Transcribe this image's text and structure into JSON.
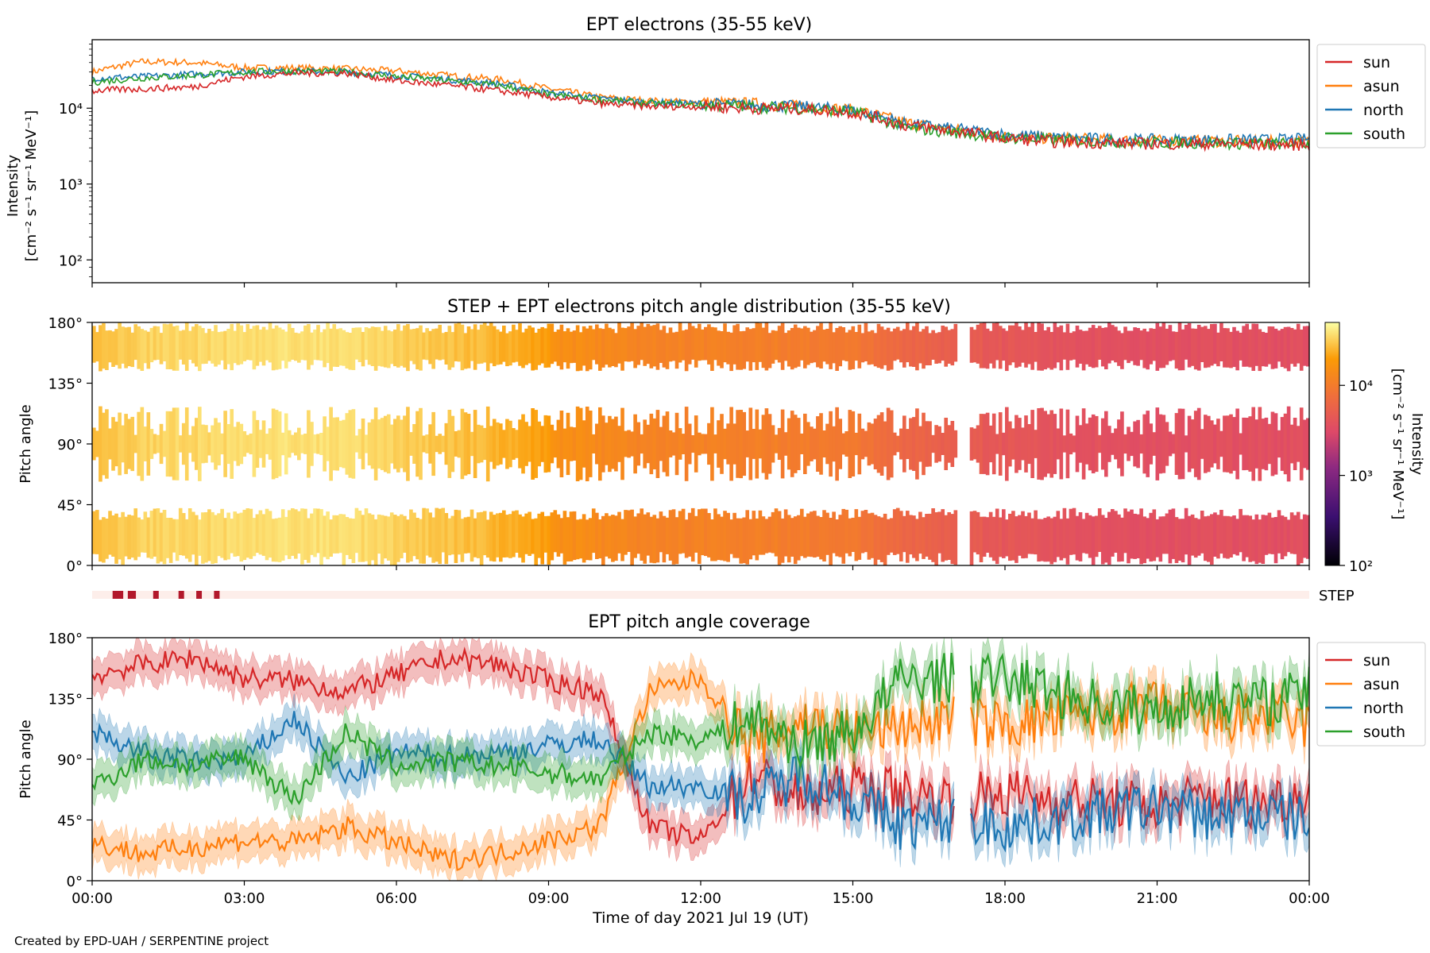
{
  "figure": {
    "credit": "Created by EPD-UAH / SERPENTINE project",
    "xlabel": "Time of day 2021 Jul 19 (UT)",
    "x_ticks": [
      "00:00",
      "03:00",
      "06:00",
      "09:00",
      "12:00",
      "15:00",
      "18:00",
      "21:00",
      "00:00"
    ]
  },
  "colors": {
    "sun": "#d62728",
    "asun": "#ff7f0e",
    "north": "#1f77b4",
    "south": "#2ca02c",
    "step": "#b2182b"
  },
  "chart_data": [
    {
      "type": "line",
      "title": "EPT electrons (35-55 keV)",
      "ylabel_line1": "Intensity",
      "ylabel_line2": "[cm⁻² s⁻¹ sr⁻¹ MeV⁻¹]",
      "yscale": "log",
      "ylim": [
        50,
        80000
      ],
      "y_ticks": [
        "10²",
        "10³",
        "10⁴"
      ],
      "y_tick_values": [
        100,
        1000,
        10000
      ],
      "x": [
        0,
        1,
        2,
        3,
        4,
        5,
        6,
        7,
        8,
        9,
        10,
        11,
        12,
        13,
        14,
        15,
        16,
        17,
        18,
        19,
        20,
        21,
        22,
        23,
        24
      ],
      "legend_position": "outside-right",
      "series": [
        {
          "name": "sun",
          "values": [
            17000,
            18000,
            19000,
            26000,
            29000,
            29000,
            23000,
            20000,
            17000,
            14000,
            11500,
            10500,
            10500,
            10000,
            9800,
            8800,
            6000,
            5000,
            4000,
            3600,
            3500,
            3400,
            3400,
            3300,
            3300
          ]
        },
        {
          "name": "asun",
          "values": [
            30000,
            41000,
            40000,
            34000,
            34000,
            33000,
            31000,
            27000,
            24000,
            18000,
            14000,
            12500,
            12000,
            11500,
            10500,
            9500,
            6500,
            5200,
            4300,
            4000,
            3800,
            3700,
            3700,
            3600,
            3600
          ]
        },
        {
          "name": "north",
          "values": [
            25000,
            26000,
            28000,
            30000,
            31000,
            30000,
            27000,
            24000,
            21000,
            16000,
            13500,
            12000,
            11500,
            11000,
            10500,
            9400,
            6300,
            5300,
            4500,
            4100,
            3900,
            3800,
            3800,
            3800,
            3900
          ]
        },
        {
          "name": "south",
          "values": [
            22000,
            25000,
            27000,
            30000,
            31000,
            30000,
            26000,
            23000,
            20000,
            15000,
            13000,
            11500,
            11000,
            10500,
            10000,
            9000,
            5500,
            4800,
            4100,
            3800,
            3600,
            3500,
            3500,
            3400,
            3400
          ]
        }
      ]
    },
    {
      "type": "heatmap",
      "title": "STEP + EPT electrons pitch angle distribution (35-55 keV)",
      "ylabel": "Pitch angle",
      "ylim": [
        0,
        180
      ],
      "y_ticks": [
        "0°",
        "45°",
        "90°",
        "135°",
        "180°"
      ],
      "colorbar": {
        "label_line1": "Intensity",
        "label_line2": "[cm⁻² s⁻¹ sr⁻¹ MeV⁻¹]",
        "scale": "log",
        "range": [
          100,
          50000
        ],
        "ticks": [
          "10²",
          "10³",
          "10⁴"
        ],
        "tick_values": [
          100,
          1000,
          10000
        ]
      },
      "data_gap_hours": [
        [
          17.0,
          17.3
        ]
      ]
    },
    {
      "type": "bar",
      "label": "STEP",
      "step_marks_hours": [
        0.45,
        0.55,
        0.75,
        0.8,
        1.25,
        1.75,
        2.1,
        2.45
      ]
    },
    {
      "type": "line",
      "title": "EPT pitch angle coverage",
      "ylabel": "Pitch angle",
      "ylim": [
        0,
        180
      ],
      "y_ticks": [
        "0°",
        "45°",
        "90°",
        "135°",
        "180°"
      ],
      "x": [
        0,
        1,
        2,
        3,
        4,
        5,
        6,
        7,
        8,
        9,
        10,
        11,
        12,
        13,
        14,
        15,
        16,
        17,
        18,
        19,
        20,
        21,
        22,
        23,
        24
      ],
      "legend_position": "outside-right",
      "series": [
        {
          "name": "sun",
          "values": [
            152,
            160,
            165,
            150,
            148,
            140,
            152,
            165,
            160,
            148,
            140,
            40,
            30,
            80,
            60,
            70,
            65,
            60,
            65,
            60,
            58,
            55,
            62,
            58,
            65
          ]
        },
        {
          "name": "asun",
          "values": [
            28,
            20,
            25,
            30,
            28,
            40,
            28,
            15,
            20,
            30,
            40,
            140,
            150,
            100,
            120,
            110,
            115,
            120,
            115,
            120,
            125,
            130,
            118,
            122,
            115
          ]
        },
        {
          "name": "north",
          "values": [
            110,
            95,
            88,
            90,
            120,
            75,
            95,
            92,
            95,
            100,
            105,
            70,
            70,
            60,
            80,
            60,
            40,
            45,
            40,
            45,
            50,
            55,
            48,
            50,
            45
          ]
        },
        {
          "name": "south",
          "values": [
            70,
            90,
            85,
            92,
            60,
            110,
            85,
            88,
            85,
            80,
            75,
            110,
            105,
            120,
            100,
            110,
            150,
            150,
            150,
            140,
            130,
            125,
            138,
            132,
            140
          ]
        }
      ]
    }
  ]
}
